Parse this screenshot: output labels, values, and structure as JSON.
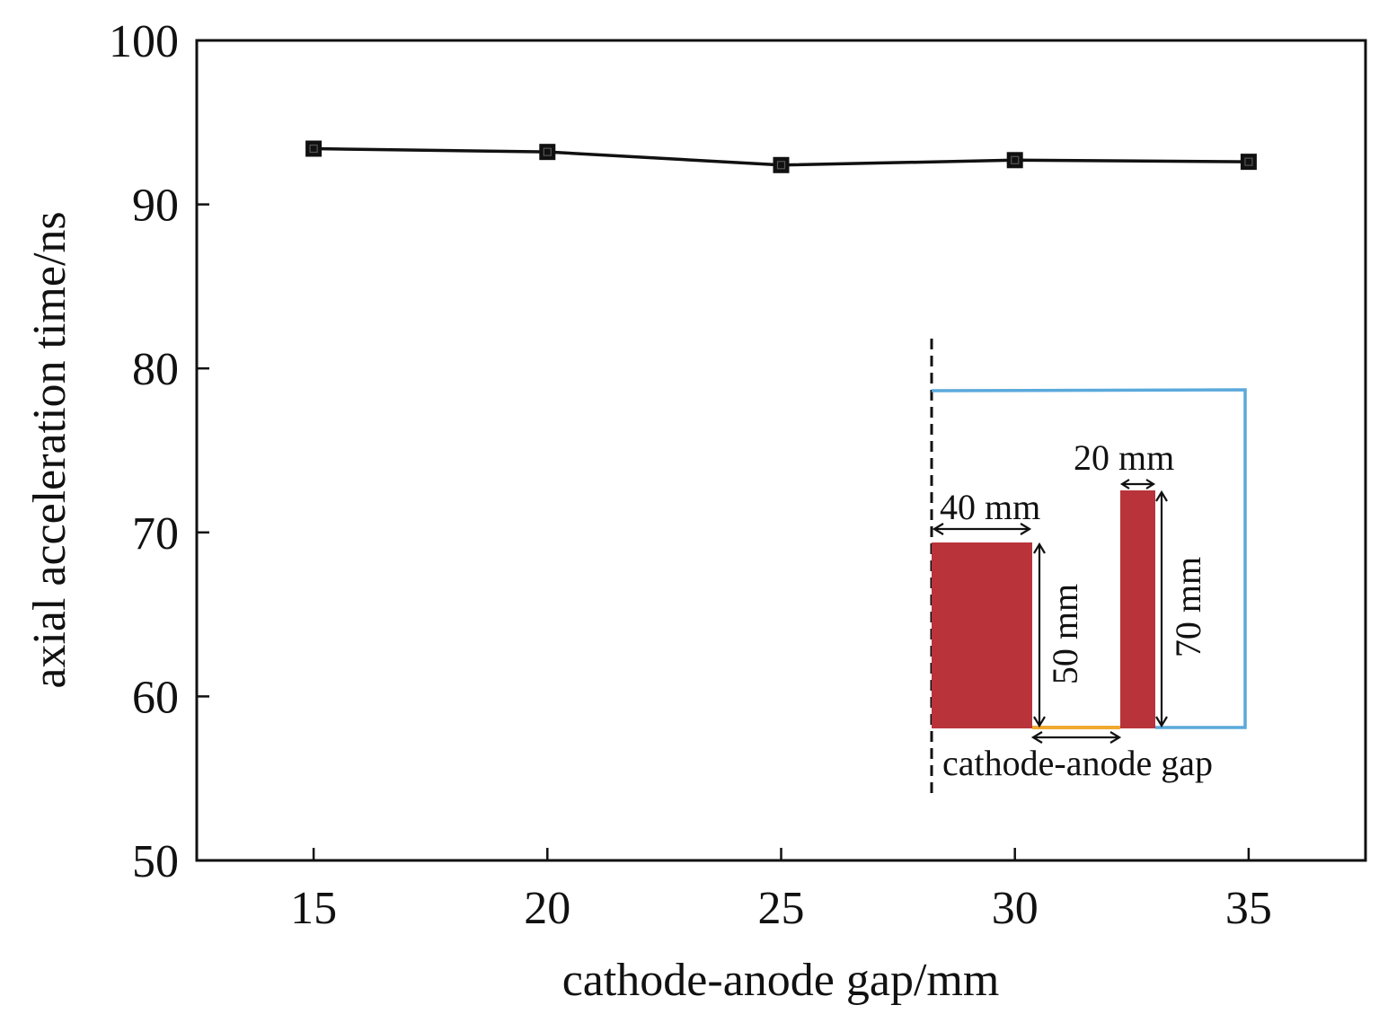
{
  "chart_data": {
    "type": "line",
    "xlabel": "cathode-anode gap/mm",
    "ylabel": "axial acceleration time/ns",
    "x": [
      15,
      20,
      25,
      30,
      35
    ],
    "series": [
      {
        "values": [
          93.4,
          93.2,
          92.4,
          92.7,
          92.6
        ],
        "marker": "square",
        "color": "#111111"
      }
    ],
    "xlim": [
      12.5,
      37.5
    ],
    "ylim": [
      50,
      100
    ],
    "xticks": [
      15,
      20,
      25,
      30,
      35
    ],
    "yticks": [
      50,
      60,
      70,
      80,
      90,
      100
    ],
    "xtick_labels": [
      "15",
      "20",
      "25",
      "30",
      "35"
    ],
    "ytick_labels": [
      "50",
      "60",
      "70",
      "80",
      "90",
      "100"
    ],
    "grid": false,
    "inset": {
      "labels": {
        "cathode_width": "40 mm",
        "cathode_height": "50 mm",
        "anode_width": "20 mm",
        "anode_height": "70 mm",
        "gap": "cathode-anode gap"
      },
      "colors": {
        "electrode": "#b8343a",
        "boundary": "#5aa9dc",
        "gap_line": "#f0a830",
        "axis": "#111111"
      }
    }
  }
}
